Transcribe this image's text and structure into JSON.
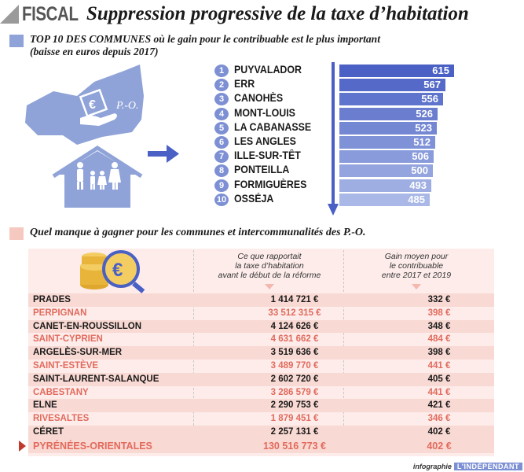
{
  "header": {
    "kicker": "FISCAL",
    "title": "Suppression progressive de la taxe d’habitation"
  },
  "section1": {
    "title_line1": "TOP 10 DES COMMUNES où le gain pour le contribuable est le plus important",
    "title_line2": "(baisse en euros depuis 2017)"
  },
  "map": {
    "label": "P.-O.",
    "icon": "euro-hand-icon"
  },
  "colors": {
    "bar_dark": "#4a60c4",
    "bar_light": "#a9b8e6",
    "row_alt": "#f9d9d3",
    "red_text": "#e26a5c"
  },
  "chart_data": {
    "type": "bar",
    "orientation": "horizontal",
    "title": "TOP 10 DES COMMUNES où le gain pour le contribuable est le plus important",
    "subtitle": "(baisse en euros depuis 2017)",
    "categories": [
      "PUYVALADOR",
      "ERR",
      "CANOHÈS",
      "MONT-LOUIS",
      "LA CABANASSE",
      "LES ANGLES",
      "ILLE-SUR-TÊT",
      "PONTEILLA",
      "FORMIGUÈRES",
      "OSSÉJA"
    ],
    "ranks": [
      "1",
      "2",
      "3",
      "4",
      "5",
      "6",
      "7",
      "8",
      "9",
      "10"
    ],
    "values": [
      615,
      567,
      556,
      526,
      523,
      512,
      506,
      500,
      493,
      485
    ],
    "value_labels": [
      "615",
      "567",
      "556",
      "526",
      "523",
      "512",
      "506",
      "500",
      "493",
      "485"
    ],
    "xlim": [
      0,
      615
    ],
    "grid": false
  },
  "section2": {
    "title": "Quel manque à gagner pour les communes et intercommunalités des P.-O."
  },
  "table": {
    "col1_header": "Ce que rapportait la taxe d’habitation avant le début de la réforme",
    "col1_lines": [
      "Ce que rapportait",
      "la taxe d’habitation",
      "avant le début de la réforme"
    ],
    "col2_lines": [
      "Gain moyen pour",
      "le contribuable",
      "entre 2017 et 2019"
    ],
    "rows": [
      {
        "name": "PRADES",
        "tax": "1 414 721 €",
        "gain": "332 €",
        "style": "dark"
      },
      {
        "name": "PERPIGNAN",
        "tax": "33 512 315 €",
        "gain": "398 €",
        "style": "red"
      },
      {
        "name": "CANET-EN-ROUSSILLON",
        "tax": "4 124 626 €",
        "gain": "348 €",
        "style": "dark"
      },
      {
        "name": "SAINT-CYPRIEN",
        "tax": "4 631 662 €",
        "gain": "484 €",
        "style": "red"
      },
      {
        "name": "ARGELÈS-SUR-MER",
        "tax": "3 519 636 €",
        "gain": "398 €",
        "style": "dark"
      },
      {
        "name": "SAINT-ESTÈVE",
        "tax": "3 489 770 €",
        "gain": "441 €",
        "style": "red"
      },
      {
        "name": "SAINT-LAURENT-SALANQUE",
        "tax": "2 602 720 €",
        "gain": "405 €",
        "style": "dark"
      },
      {
        "name": "CABESTANY",
        "tax": "3 286 579 €",
        "gain": "441 €",
        "style": "red"
      },
      {
        "name": "ELNE",
        "tax": "2 290 753 €",
        "gain": "421 €",
        "style": "dark"
      },
      {
        "name": "RIVESALTES",
        "tax": "1 879 451 €",
        "gain": "346 €",
        "style": "red"
      },
      {
        "name": "CÉRET",
        "tax": "2 257 131 €",
        "gain": "402 €",
        "style": "dark"
      }
    ],
    "total": {
      "name": "PYRÉNÉES-ORIENTALES",
      "tax": "130 516 773 €",
      "gain": "402 €"
    }
  },
  "footer": {
    "label": "infographie",
    "brand": "L'INDÉPENDANT"
  }
}
